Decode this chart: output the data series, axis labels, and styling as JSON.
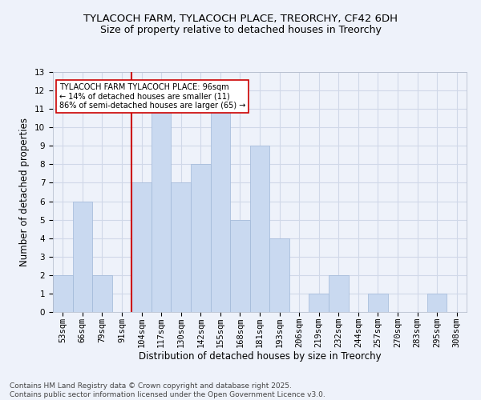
{
  "title1": "TYLACOCH FARM, TYLACOCH PLACE, TREORCHY, CF42 6DH",
  "title2": "Size of property relative to detached houses in Treorchy",
  "xlabel": "Distribution of detached houses by size in Treorchy",
  "ylabel": "Number of detached properties",
  "categories": [
    "53sqm",
    "66sqm",
    "79sqm",
    "91sqm",
    "104sqm",
    "117sqm",
    "130sqm",
    "142sqm",
    "155sqm",
    "168sqm",
    "181sqm",
    "193sqm",
    "206sqm",
    "219sqm",
    "232sqm",
    "244sqm",
    "257sqm",
    "270sqm",
    "283sqm",
    "295sqm",
    "308sqm"
  ],
  "values": [
    2,
    6,
    2,
    0,
    7,
    11,
    7,
    8,
    11,
    5,
    9,
    4,
    0,
    1,
    2,
    0,
    1,
    0,
    0,
    1,
    0
  ],
  "bar_color": "#c9d9f0",
  "bar_edge_color": "#a0b8d8",
  "red_line_x": 3.5,
  "annotation_text": "TYLACOCH FARM TYLACOCH PLACE: 96sqm\n← 14% of detached houses are smaller (11)\n86% of semi-detached houses are larger (65) →",
  "annotation_box_color": "#ffffff",
  "annotation_box_edge": "#cc0000",
  "red_line_color": "#cc0000",
  "grid_color": "#d0d8e8",
  "background_color": "#eef2fa",
  "ylim": [
    0,
    13
  ],
  "yticks": [
    0,
    1,
    2,
    3,
    4,
    5,
    6,
    7,
    8,
    9,
    10,
    11,
    12,
    13
  ],
  "footer1": "Contains HM Land Registry data © Crown copyright and database right 2025.",
  "footer2": "Contains public sector information licensed under the Open Government Licence v3.0.",
  "title1_fontsize": 9.5,
  "title2_fontsize": 9,
  "xlabel_fontsize": 8.5,
  "ylabel_fontsize": 8.5,
  "tick_fontsize": 7.5,
  "annotation_fontsize": 7,
  "footer_fontsize": 6.5
}
